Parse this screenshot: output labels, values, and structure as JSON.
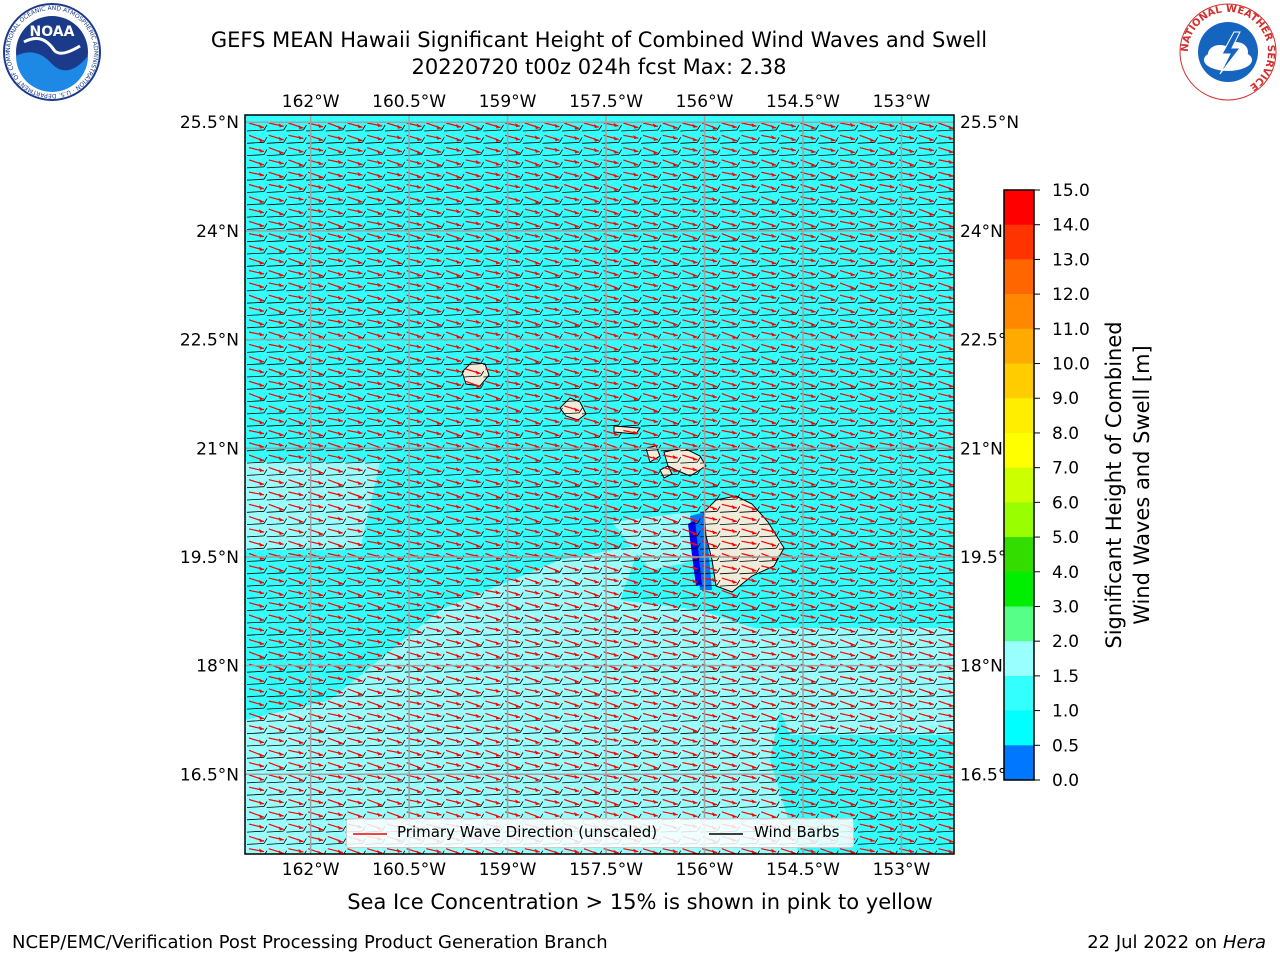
{
  "title": {
    "line1": "GEFS MEAN Hawaii Significant Height of Combined Wind Waves and Swell",
    "line2": "20220720 t00z 024h fcst   Max: 2.38"
  },
  "map": {
    "lon_ticks": [
      "162°W",
      "160.5°W",
      "159°W",
      "157.5°W",
      "156°W",
      "154.5°W",
      "153°W"
    ],
    "lat_ticks": [
      "25.5°N",
      "24°N",
      "22.5°N",
      "21°N",
      "19.5°N",
      "18°N",
      "16.5°N"
    ],
    "lon_range": [
      -163.0,
      -152.2
    ],
    "lat_range": [
      15.4,
      25.6
    ],
    "colors": {
      "sea_light": "#99ffff",
      "sea_mid": "#33ffff",
      "land": "#f0ecdc",
      "wave_arrow": "#ff0000",
      "wind_barb": "#000000",
      "grid": "#a0a0a0"
    }
  },
  "legend": {
    "wave_label": "Primary Wave Direction (unscaled)",
    "wind_label": "Wind Barbs"
  },
  "colorbar": {
    "label_line1": "Significant Height of Combined",
    "label_line2": "Wind Waves and Swell [m]",
    "ticks": [
      "15.0",
      "14.0",
      "13.0",
      "12.0",
      "11.0",
      "10.0",
      "9.0",
      "8.0",
      "7.0",
      "6.0",
      "5.0",
      "4.0",
      "3.0",
      "2.0",
      "1.5",
      "1.0",
      "0.5",
      "0.0"
    ],
    "colors": [
      "#ff0000",
      "#ff3300",
      "#ff6600",
      "#ff8800",
      "#ffaa00",
      "#ffcc00",
      "#ffee00",
      "#ffff00",
      "#ccff00",
      "#99ff00",
      "#33dd00",
      "#00ee00",
      "#55ff88",
      "#99ffff",
      "#33ffff",
      "#00ffff",
      "#0077ff",
      "#0000ff"
    ]
  },
  "logos": {
    "noaa_text": "NOAA",
    "noaa_ring": "NATIONAL OCEANIC AND ATMOSPHERIC ADMINISTRATION · U.S. DEPARTMENT OF COMMERCE",
    "nws_ring": "NATIONAL WEATHER SERVICE"
  },
  "note": "Sea Ice Concentration > 15% is shown in pink to yellow",
  "footer": {
    "left": "NCEP/EMC/Verification Post Processing Product Generation Branch",
    "right_date": "22 Jul 2022 on ",
    "right_host": "Hera"
  }
}
